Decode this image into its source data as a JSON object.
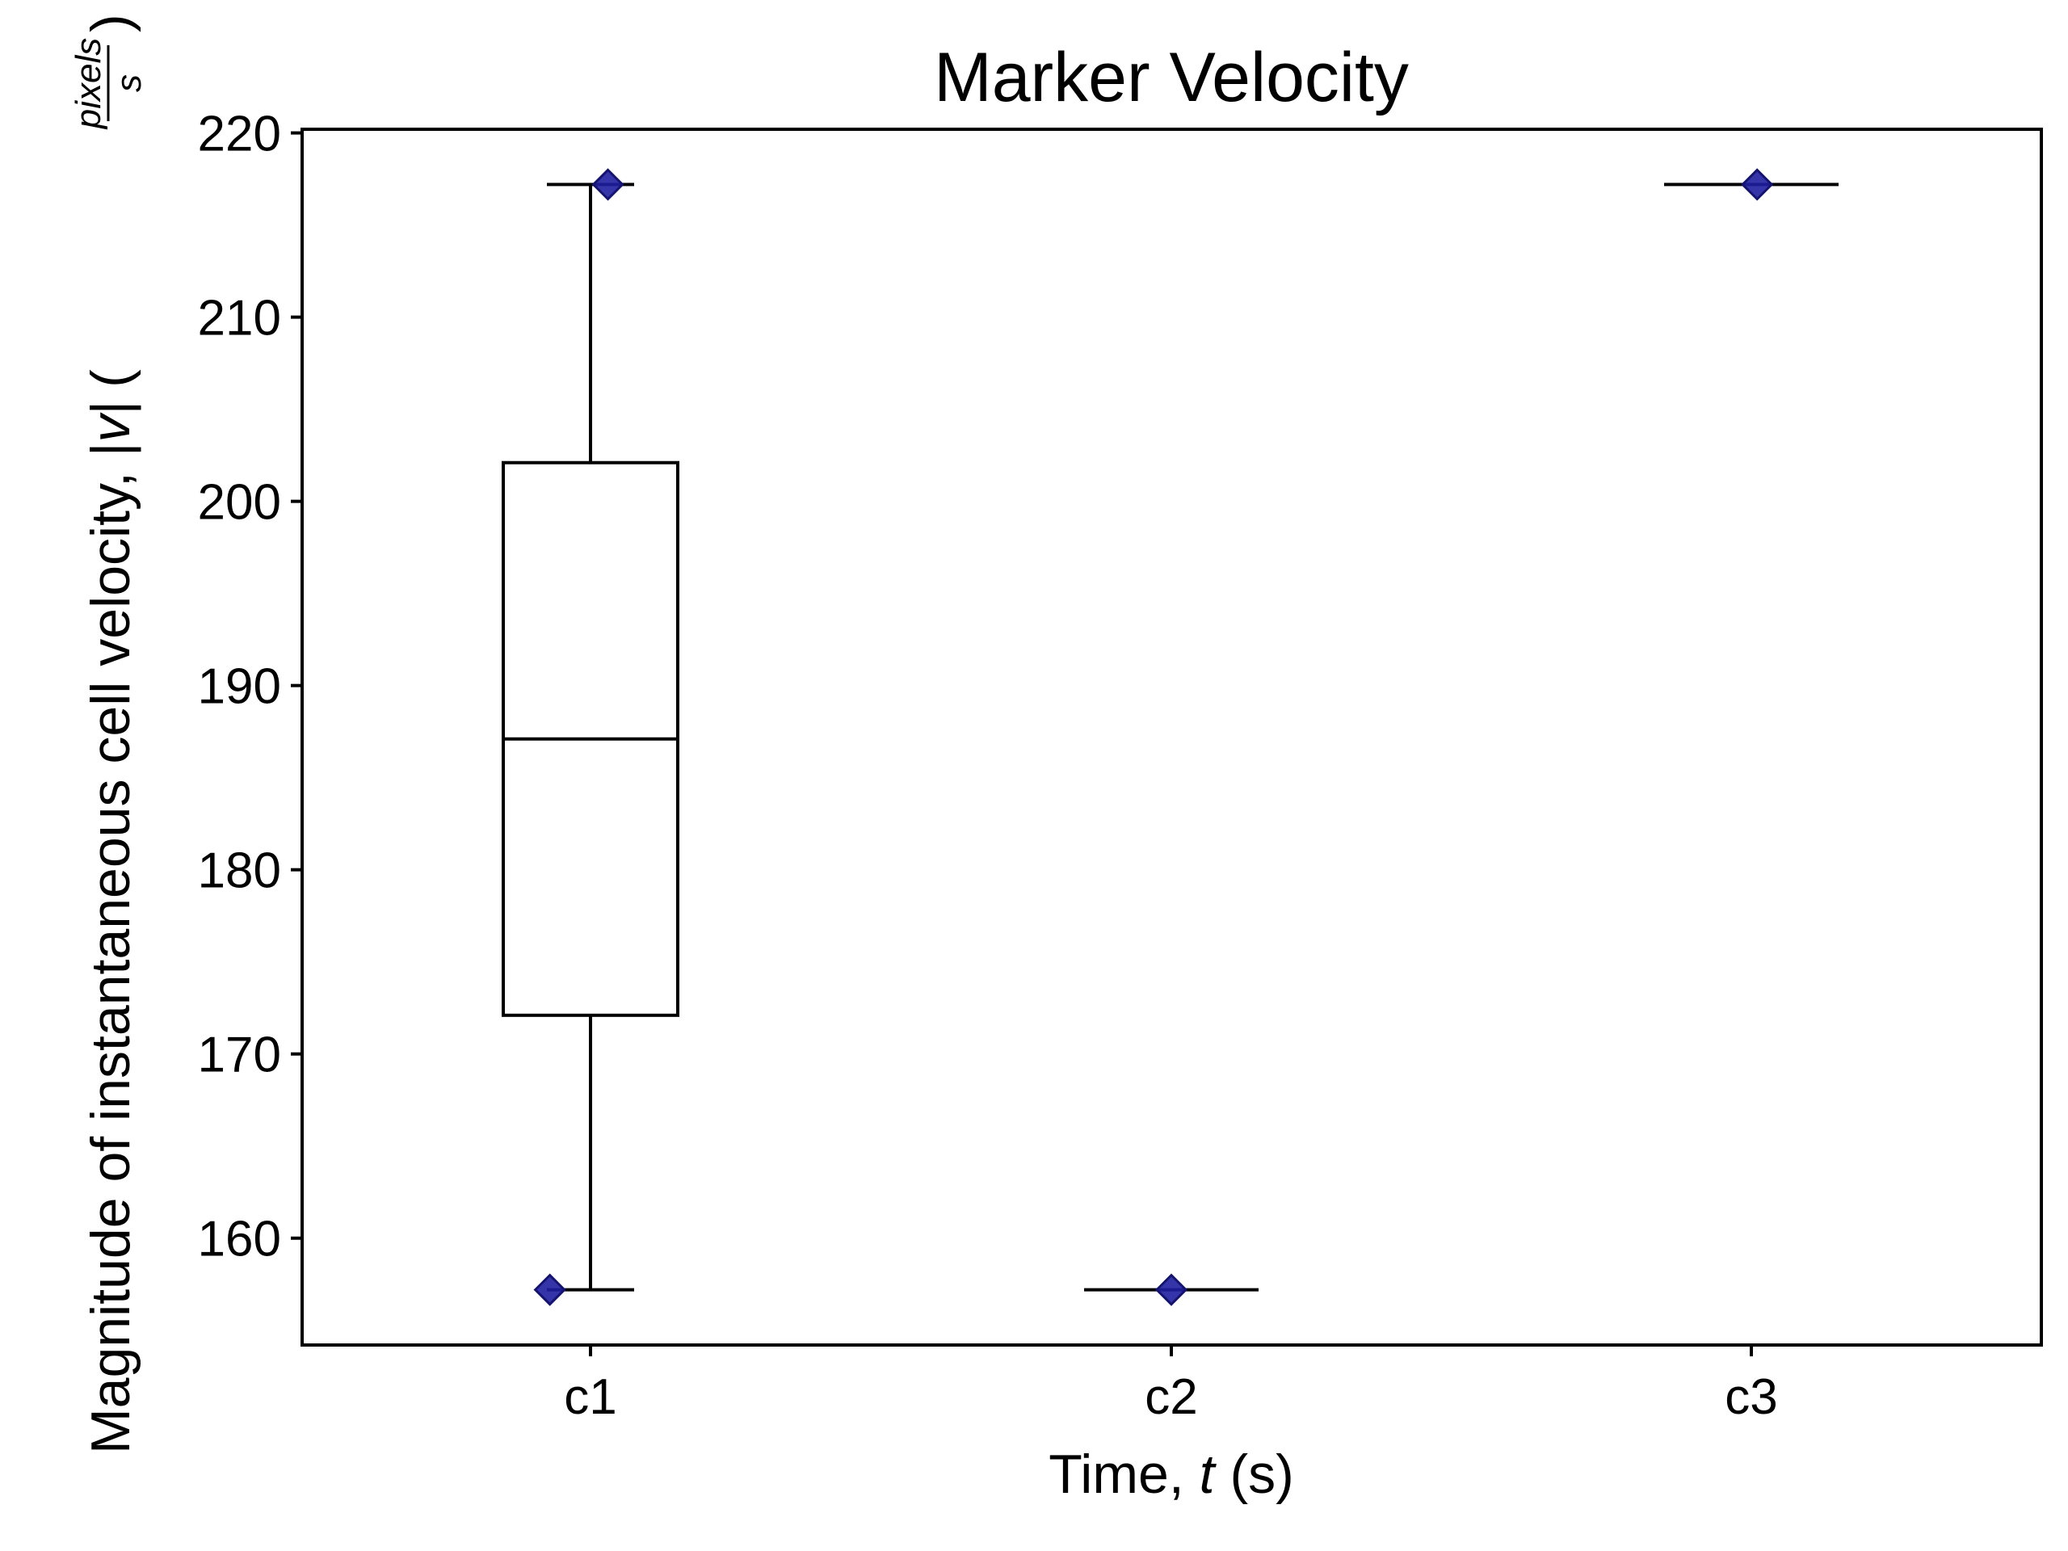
{
  "chart_data": {
    "type": "box",
    "title": "Marker Velocity",
    "xlabel": {
      "prefix": "Time, ",
      "variable": "t",
      "suffix": " (s)"
    },
    "ylabel": {
      "prefix": "Magnitude of instantaneous cell velocity, |",
      "variable": "v",
      "bar": "|",
      "open_paren": "(",
      "frac_numerator": "pixels",
      "frac_denominator": "s",
      "close_paren": ")"
    },
    "categories": [
      "c1",
      "c2",
      "c3"
    ],
    "ylim": [
      154.2,
      220.2
    ],
    "yticks": [
      160,
      170,
      180,
      190,
      200,
      210,
      220
    ],
    "grid": false,
    "legend": "none",
    "boxes": [
      {
        "category": "c1",
        "whisker_low": 157.2,
        "q1": 172.1,
        "median": 187.1,
        "q3": 202.1,
        "whisker_high": 217.2
      },
      {
        "category": "c2",
        "whisker_low": 157.2,
        "q1": 157.2,
        "median": 157.2,
        "q3": 157.2,
        "whisker_high": 157.2
      },
      {
        "category": "c3",
        "whisker_low": 217.2,
        "q1": 217.2,
        "median": 217.2,
        "q3": 217.2,
        "whisker_high": 217.2
      }
    ],
    "points": [
      {
        "category": "c1",
        "jitter": -0.07,
        "y": 157.2
      },
      {
        "category": "c1",
        "jitter": 0.03,
        "y": 217.2
      },
      {
        "category": "c2",
        "jitter": 0.0,
        "y": 157.2
      },
      {
        "category": "c3",
        "jitter": 0.01,
        "y": 217.2
      }
    ],
    "colors": {
      "box": "#000000",
      "marker_fill": "#1f1fa0",
      "marker_edge": "#141470"
    }
  }
}
